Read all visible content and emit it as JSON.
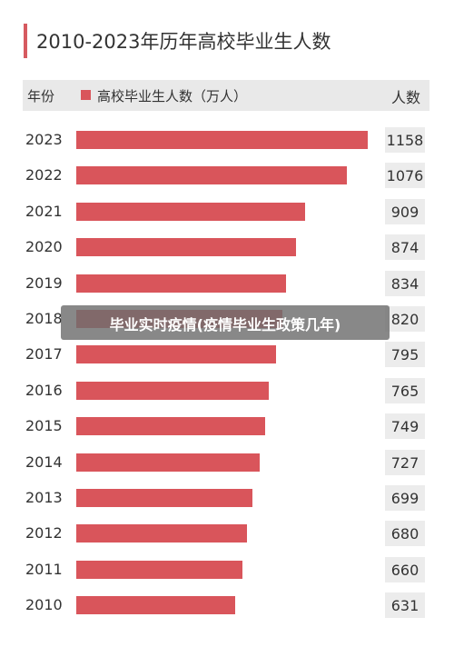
{
  "title": "2010-2023年历年高校毕业生人数",
  "header": {
    "year_label": "年份",
    "legend_label": "高校毕业生人数（万人）",
    "count_label": "人数"
  },
  "colors": {
    "bar": "#d9555b",
    "accent": "#d65a60",
    "value_box": "#ececec",
    "header_bg": "#e9e9e9"
  },
  "overlay": {
    "text": "毕业实时疫情(疫情毕业生政策几年)"
  },
  "chart_data": {
    "type": "bar",
    "orientation": "horizontal",
    "title": "2010-2023年历年高校毕业生人数",
    "series": [
      {
        "name": "高校毕业生人数（万人）",
        "values": [
          1158,
          1076,
          909,
          874,
          834,
          820,
          795,
          765,
          749,
          727,
          699,
          680,
          660,
          631
        ]
      }
    ],
    "categories": [
      "2023",
      "2022",
      "2021",
      "2020",
      "2019",
      "2018",
      "2017",
      "2016",
      "2015",
      "2014",
      "2013",
      "2012",
      "2011",
      "2010"
    ],
    "value_labels": [
      "1158",
      "1076",
      "909",
      "874",
      "834",
      "820",
      "795",
      "765",
      "749",
      "727",
      "699",
      "680",
      "660",
      "631"
    ],
    "xlim": [
      0,
      1158
    ],
    "grid": false,
    "legend": "top-left"
  }
}
